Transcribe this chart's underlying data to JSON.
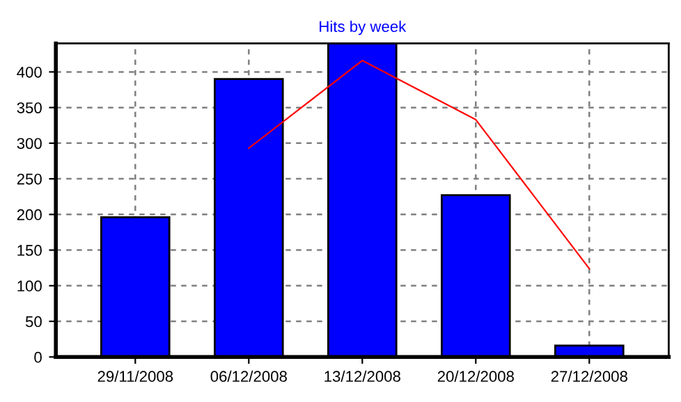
{
  "chart_data": {
    "type": "bar",
    "title": "Hits by week",
    "categories": [
      "29/11/2008",
      "06/12/2008",
      "13/12/2008",
      "20/12/2008",
      "27/12/2008"
    ],
    "series": [
      {
        "color": "#0000ff",
        "values": [
          196,
          390,
          440,
          227,
          16
        ]
      },
      {
        "type": "line",
        "color": "#ff0000",
        "values": [
          null,
          293,
          416,
          333,
          124
        ]
      }
    ],
    "ylim": [
      0,
      440
    ],
    "yticks": [
      0,
      50,
      100,
      150,
      200,
      250,
      300,
      350,
      400
    ],
    "grid": true,
    "legend": false
  }
}
